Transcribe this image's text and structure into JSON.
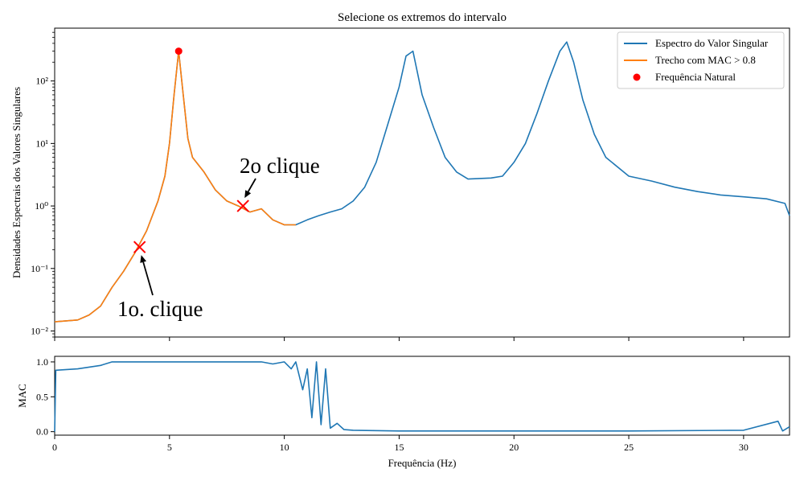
{
  "chart_data": [
    {
      "type": "line",
      "title": "Selecione os extremos do intervalo",
      "xlabel": "",
      "ylabel": "Densidades Espectrais dos Valores Singulares",
      "xlim": [
        0,
        32
      ],
      "ylim_log": [
        0.008,
        700
      ],
      "yscale": "log",
      "ytick_labels": [
        "10⁻²",
        "10⁻¹",
        "10⁰",
        "10¹",
        "10²"
      ],
      "ytick_values": [
        0.01,
        0.1,
        1,
        10,
        100
      ],
      "xtick_values": [
        0,
        5,
        10,
        15,
        20,
        25,
        30
      ],
      "legend_position": "top-right",
      "legend": [
        {
          "label": "Espectro do Valor Singular",
          "kind": "line",
          "color": "#1f77b4"
        },
        {
          "label": "Trecho com MAC > 0.8",
          "kind": "line",
          "color": "#ff7f0e"
        },
        {
          "label": "Frequência Natural",
          "kind": "dot",
          "color": "#ff0000"
        }
      ],
      "series": [
        {
          "name": "Espectro do Valor Singular",
          "color": "#1f77b4",
          "points": [
            [
              0,
              0.014
            ],
            [
              0.5,
              0.0145
            ],
            [
              1,
              0.015
            ],
            [
              1.5,
              0.018
            ],
            [
              2,
              0.025
            ],
            [
              2.5,
              0.05
            ],
            [
              3,
              0.09
            ],
            [
              3.5,
              0.18
            ],
            [
              4,
              0.4
            ],
            [
              4.5,
              1.2
            ],
            [
              4.8,
              3
            ],
            [
              5.0,
              10
            ],
            [
              5.2,
              60
            ],
            [
              5.4,
              300
            ],
            [
              5.6,
              60
            ],
            [
              5.8,
              12
            ],
            [
              6.0,
              6
            ],
            [
              6.5,
              3.5
            ],
            [
              7,
              1.8
            ],
            [
              7.5,
              1.2
            ],
            [
              8,
              1.0
            ],
            [
              8.5,
              0.8
            ],
            [
              9,
              0.9
            ],
            [
              9.5,
              0.6
            ],
            [
              10,
              0.5
            ],
            [
              10.5,
              0.5
            ],
            [
              11,
              0.6
            ],
            [
              11.5,
              0.7
            ],
            [
              12,
              0.8
            ],
            [
              12.5,
              0.9
            ],
            [
              13,
              1.2
            ],
            [
              13.5,
              2.0
            ],
            [
              14,
              5
            ],
            [
              14.5,
              20
            ],
            [
              15,
              80
            ],
            [
              15.3,
              250
            ],
            [
              15.6,
              300
            ],
            [
              16,
              60
            ],
            [
              16.5,
              18
            ],
            [
              17,
              6
            ],
            [
              17.5,
              3.5
            ],
            [
              18,
              2.7
            ],
            [
              19,
              2.8
            ],
            [
              19.5,
              3.0
            ],
            [
              20,
              5
            ],
            [
              20.5,
              10
            ],
            [
              21,
              30
            ],
            [
              21.5,
              100
            ],
            [
              22,
              300
            ],
            [
              22.3,
              420
            ],
            [
              22.6,
              200
            ],
            [
              23,
              50
            ],
            [
              23.5,
              14
            ],
            [
              24,
              6
            ],
            [
              25,
              3.0
            ],
            [
              26,
              2.5
            ],
            [
              27,
              2.0
            ],
            [
              28,
              1.7
            ],
            [
              29,
              1.5
            ],
            [
              30,
              1.4
            ],
            [
              31,
              1.3
            ],
            [
              31.8,
              1.1
            ],
            [
              32,
              0.7
            ]
          ]
        },
        {
          "name": "Trecho com MAC > 0.8",
          "color": "#ff7f0e",
          "points": [
            [
              0,
              0.014
            ],
            [
              0.5,
              0.0145
            ],
            [
              1,
              0.015
            ],
            [
              1.5,
              0.018
            ],
            [
              2,
              0.025
            ],
            [
              2.5,
              0.05
            ],
            [
              3,
              0.09
            ],
            [
              3.5,
              0.18
            ],
            [
              4,
              0.4
            ],
            [
              4.5,
              1.2
            ],
            [
              4.8,
              3
            ],
            [
              5.0,
              10
            ],
            [
              5.2,
              60
            ],
            [
              5.4,
              300
            ],
            [
              5.6,
              60
            ],
            [
              5.8,
              12
            ],
            [
              6.0,
              6
            ],
            [
              6.5,
              3.5
            ],
            [
              7,
              1.8
            ],
            [
              7.5,
              1.2
            ],
            [
              8,
              1.0
            ],
            [
              8.5,
              0.8
            ],
            [
              9,
              0.9
            ],
            [
              9.5,
              0.6
            ],
            [
              10,
              0.5
            ],
            [
              10.5,
              0.5
            ]
          ]
        }
      ],
      "natural_frequency_point": {
        "x": 5.4,
        "y": 300
      },
      "selection_markers": [
        {
          "x": 3.7,
          "y": 0.22
        },
        {
          "x": 8.2,
          "y": 1.0
        }
      ],
      "annotations": [
        {
          "text": "1o. clique",
          "target_x": 3.7,
          "target_y": 0.22
        },
        {
          "text": "2o clique",
          "target_x": 8.2,
          "target_y": 1.0
        }
      ]
    },
    {
      "type": "line",
      "title": "",
      "xlabel": "Frequência (Hz)",
      "ylabel": "MAC",
      "xlim": [
        0,
        32
      ],
      "ylim": [
        -0.05,
        1.08
      ],
      "yticks": [
        "0.0",
        "0.5",
        "1.0"
      ],
      "ytick_values": [
        0,
        0.5,
        1.0
      ],
      "xticks": [
        "0",
        "5",
        "10",
        "15",
        "20",
        "25",
        "30"
      ],
      "xtick_values": [
        0,
        5,
        10,
        15,
        20,
        25,
        30
      ],
      "series": [
        {
          "color": "#1f77b4",
          "points": [
            [
              0,
              0.0
            ],
            [
              0.05,
              0.88
            ],
            [
              1,
              0.9
            ],
            [
              2,
              0.95
            ],
            [
              2.5,
              1.0
            ],
            [
              3,
              1.0
            ],
            [
              5,
              1.0
            ],
            [
              8,
              1.0
            ],
            [
              9,
              1.0
            ],
            [
              9.5,
              0.97
            ],
            [
              10,
              1.0
            ],
            [
              10.3,
              0.9
            ],
            [
              10.5,
              1.0
            ],
            [
              10.8,
              0.6
            ],
            [
              11.0,
              0.9
            ],
            [
              11.2,
              0.2
            ],
            [
              11.4,
              1.0
            ],
            [
              11.6,
              0.1
            ],
            [
              11.8,
              0.9
            ],
            [
              12.0,
              0.05
            ],
            [
              12.3,
              0.12
            ],
            [
              12.6,
              0.03
            ],
            [
              13,
              0.02
            ],
            [
              15,
              0.01
            ],
            [
              20,
              0.01
            ],
            [
              25,
              0.01
            ],
            [
              30,
              0.02
            ],
            [
              31.5,
              0.15
            ],
            [
              31.7,
              0.01
            ],
            [
              32,
              0.07
            ]
          ]
        }
      ]
    }
  ]
}
